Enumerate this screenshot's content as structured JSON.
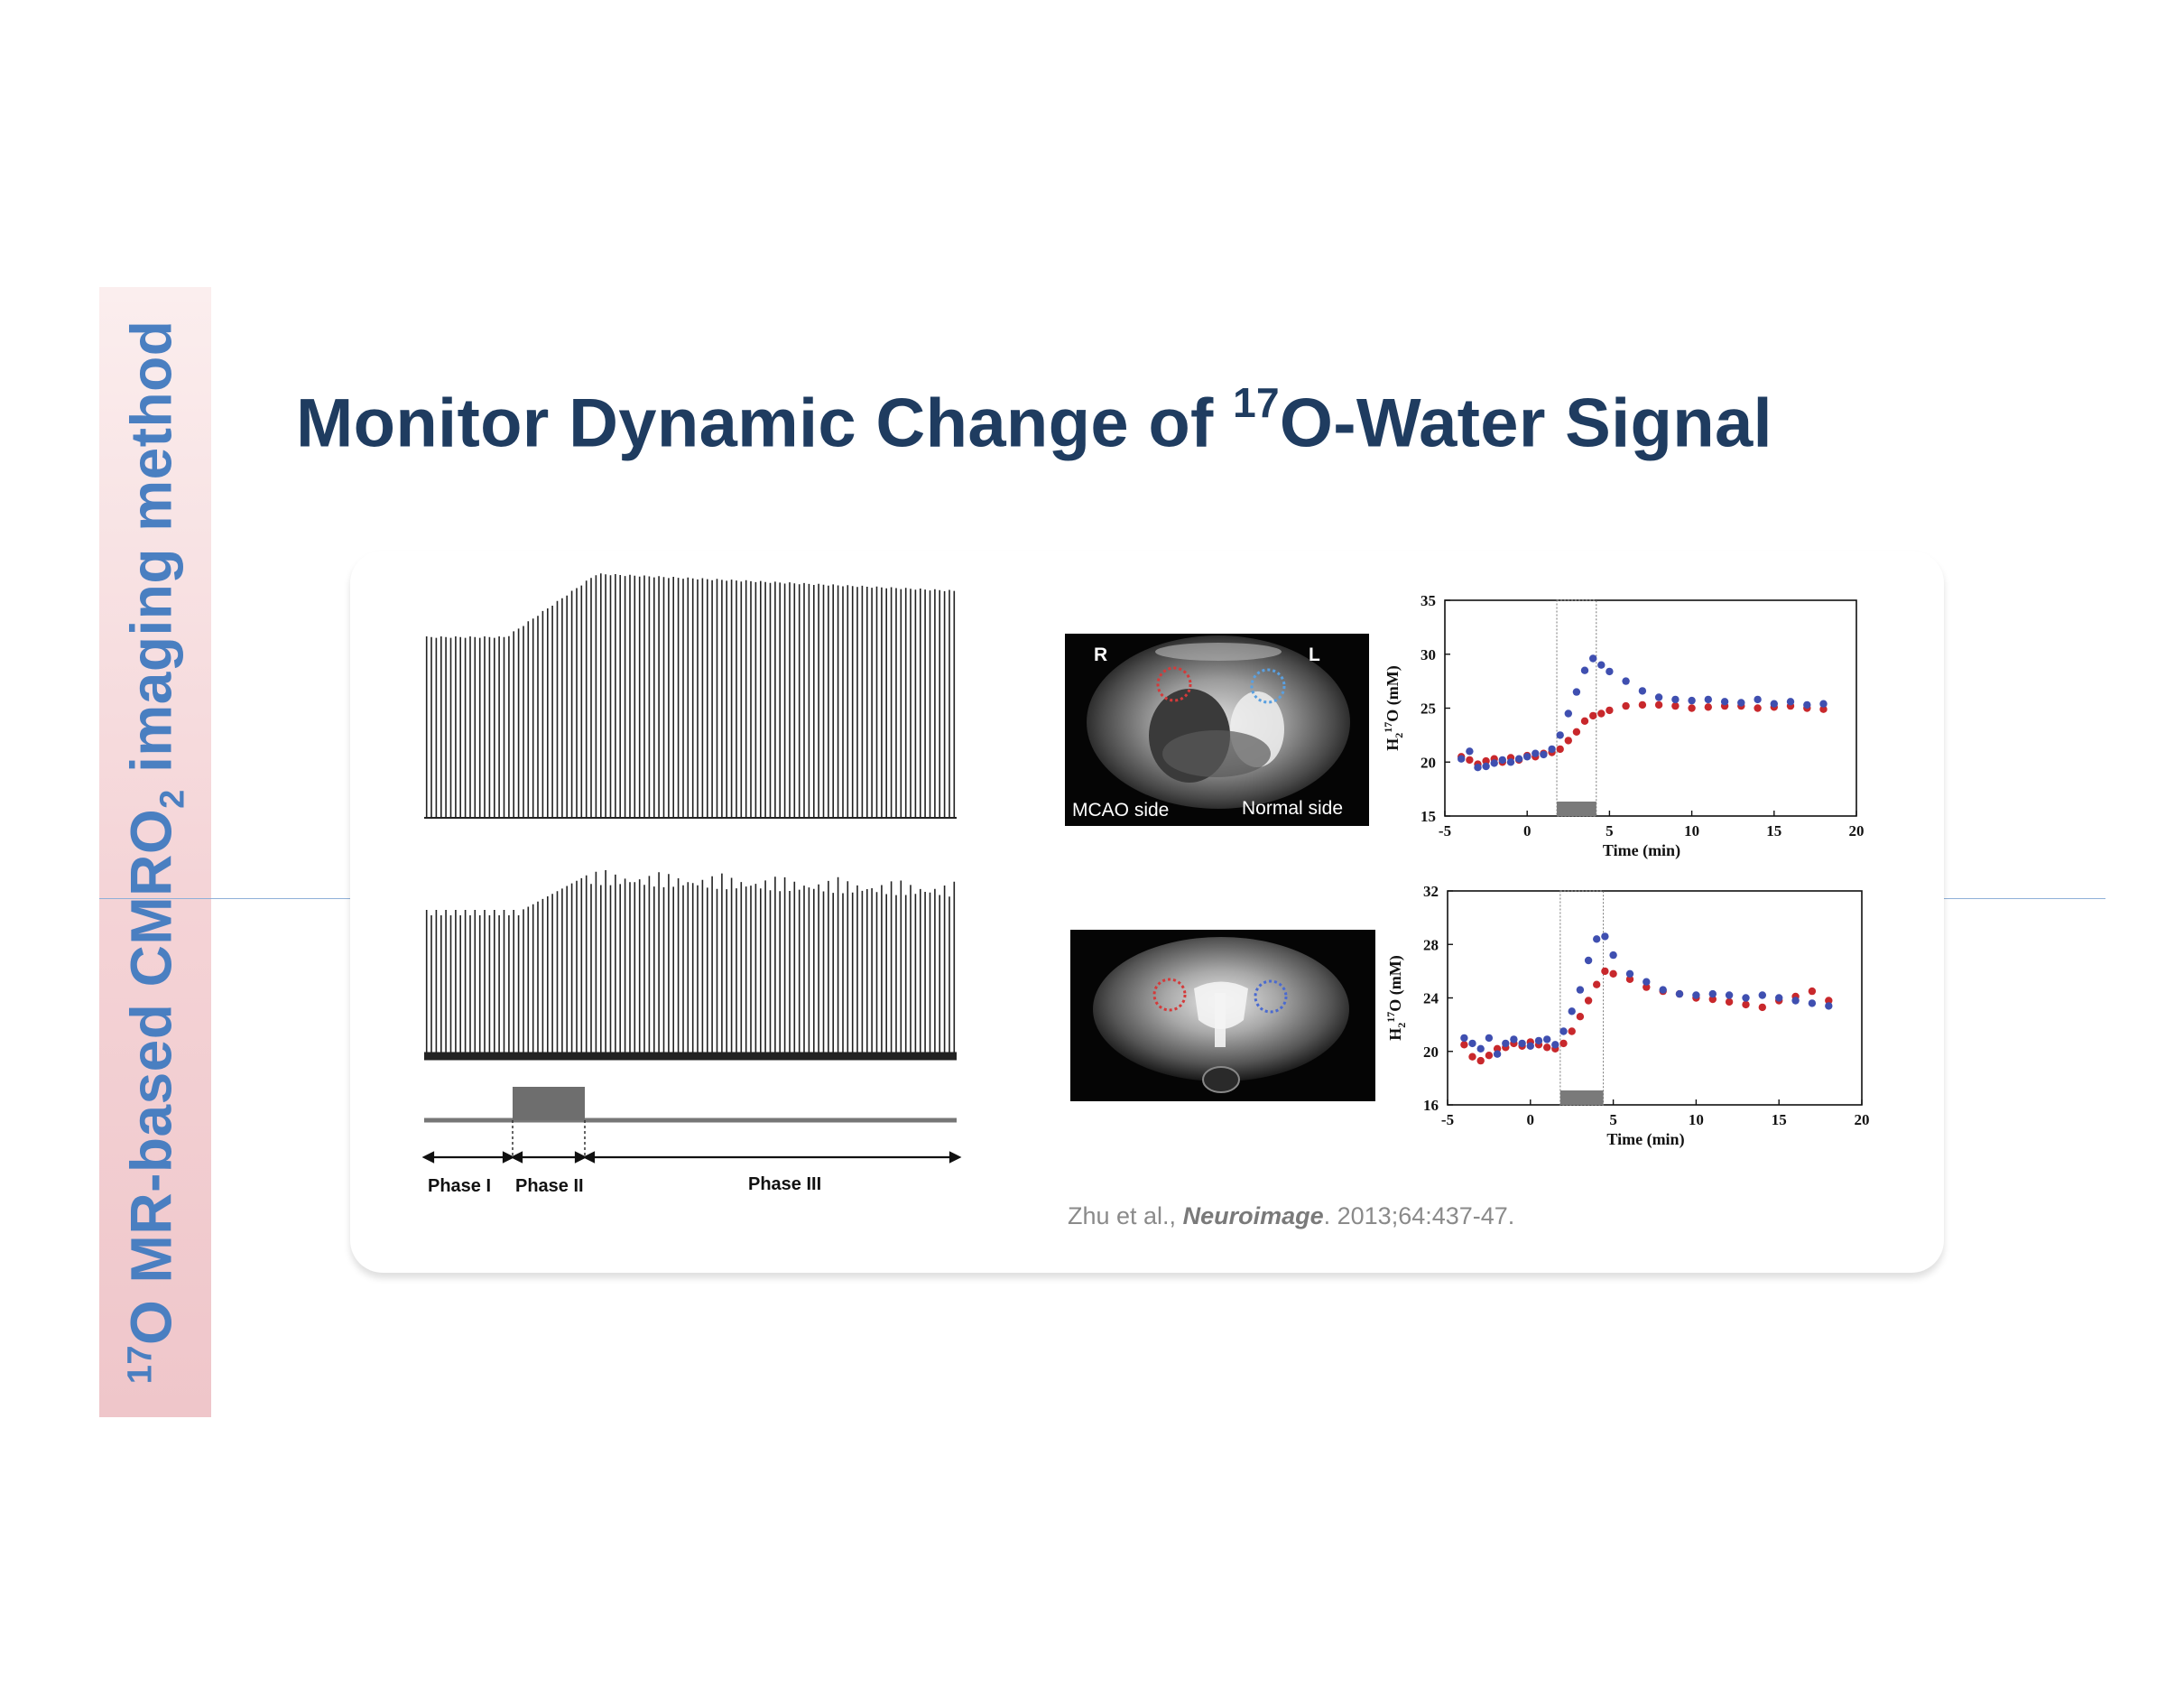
{
  "sidebar": {
    "sup": "17",
    "part1": "O MR-based CMRO",
    "sub": "2",
    "part2": " imaging method"
  },
  "title": {
    "prefix": "Monitor Dynamic Change of ",
    "sup": "17",
    "suffix": "O-Water Signal"
  },
  "left_figure": {
    "phases": [
      "Phase I",
      "Phase II",
      "Phase III"
    ]
  },
  "brain_images": {
    "top": {
      "left_marker": "R",
      "right_marker": "L",
      "left_caption": "MCAO side",
      "right_caption": "Normal side"
    },
    "bottom": {}
  },
  "colors": {
    "series_red": "#c8282c",
    "series_blue": "#3f4fb0",
    "title": "#1f3c60",
    "sidebar_text": "#4a7fc1"
  },
  "chart_data": [
    {
      "type": "scatter",
      "ylabel_main": "H",
      "ylabel_sub": "2",
      "ylabel_sup": "17",
      "ylabel_rest": "O (mM)",
      "xlabel": "Time (min)",
      "xlim": [
        -5,
        20
      ],
      "ylim": [
        15,
        35
      ],
      "xticks": [
        -5,
        0,
        5,
        10,
        15,
        20
      ],
      "yticks": [
        15,
        20,
        25,
        30,
        35
      ],
      "infusion_window": [
        1.8,
        4.2
      ],
      "series": [
        {
          "color": "#c8282c",
          "x": [
            -4,
            -3.5,
            -3,
            -2.5,
            -2,
            -1.5,
            -1,
            -0.5,
            0,
            0.5,
            1,
            1.5,
            2,
            2.5,
            3,
            3.5,
            4,
            4.5,
            5,
            6,
            7,
            8,
            9,
            10,
            11,
            12,
            13,
            14,
            15,
            16,
            17,
            18
          ],
          "y": [
            20.5,
            20.2,
            19.8,
            20.1,
            20.3,
            20,
            20.4,
            20.2,
            20.6,
            20.5,
            20.8,
            20.9,
            21.2,
            22,
            22.8,
            23.8,
            24.3,
            24.5,
            24.8,
            25.2,
            25.3,
            25.3,
            25.2,
            25,
            25.1,
            25.2,
            25.2,
            25,
            25.1,
            25.2,
            25,
            24.9
          ]
        },
        {
          "color": "#3f4fb0",
          "x": [
            -4,
            -3.5,
            -3,
            -2.5,
            -2,
            -1.5,
            -1,
            -0.5,
            0,
            0.5,
            1,
            1.5,
            2,
            2.5,
            3,
            3.5,
            4,
            4.5,
            5,
            6,
            7,
            8,
            9,
            10,
            11,
            12,
            13,
            14,
            15,
            16,
            17,
            18
          ],
          "y": [
            20.3,
            21,
            19.5,
            19.6,
            19.9,
            20.2,
            20,
            20.3,
            20.5,
            20.8,
            20.7,
            21.2,
            22.5,
            24.5,
            26.5,
            28.5,
            29.6,
            29,
            28.4,
            27.5,
            26.6,
            26,
            25.8,
            25.7,
            25.8,
            25.6,
            25.5,
            25.8,
            25.4,
            25.6,
            25.3,
            25.4
          ]
        }
      ]
    },
    {
      "type": "scatter",
      "ylabel_main": "H",
      "ylabel_sub": "2",
      "ylabel_sup": "17",
      "ylabel_rest": "O (mM)",
      "xlabel": "Time (min)",
      "xlim": [
        -5,
        20
      ],
      "ylim": [
        16,
        32
      ],
      "xticks": [
        -5,
        0,
        5,
        10,
        15,
        20
      ],
      "yticks": [
        16,
        20,
        24,
        28,
        32
      ],
      "infusion_window": [
        1.8,
        4.4
      ],
      "series": [
        {
          "color": "#c8282c",
          "x": [
            -4,
            -3.5,
            -3,
            -2.5,
            -2,
            -1.5,
            -1,
            -0.5,
            0,
            0.5,
            1,
            1.5,
            2,
            2.5,
            3,
            3.5,
            4,
            4.5,
            5,
            6,
            7,
            8,
            9,
            10,
            11,
            12,
            13,
            14,
            15,
            16,
            17,
            18
          ],
          "y": [
            20.5,
            19.6,
            19.3,
            19.7,
            20.2,
            20.3,
            20.6,
            20.4,
            20.7,
            20.5,
            20.3,
            20.2,
            20.6,
            21.5,
            22.6,
            23.8,
            25,
            26,
            25.8,
            25.4,
            24.8,
            24.5,
            24.3,
            24,
            23.9,
            23.7,
            23.5,
            23.3,
            23.8,
            24.1,
            24.5,
            23.8
          ]
        },
        {
          "color": "#3f4fb0",
          "x": [
            -4,
            -3.5,
            -3,
            -2.5,
            -2,
            -1.5,
            -1,
            -0.5,
            0,
            0.5,
            1,
            1.5,
            2,
            2.5,
            3,
            3.5,
            4,
            4.5,
            5,
            6,
            7,
            8,
            9,
            10,
            11,
            12,
            13,
            14,
            15,
            16,
            17,
            18
          ],
          "y": [
            21,
            20.6,
            20.2,
            21,
            19.8,
            20.6,
            20.9,
            20.6,
            20.4,
            20.8,
            20.9,
            20.5,
            21.5,
            23,
            24.6,
            26.8,
            28.4,
            28.6,
            27.2,
            25.8,
            25.2,
            24.6,
            24.3,
            24.2,
            24.3,
            24.2,
            24,
            24.2,
            24,
            23.8,
            23.6,
            23.4
          ]
        }
      ]
    }
  ],
  "citation": {
    "authors": "Zhu et al., ",
    "journal": "Neuroimage",
    "details": ". 2013;64:437-47."
  }
}
